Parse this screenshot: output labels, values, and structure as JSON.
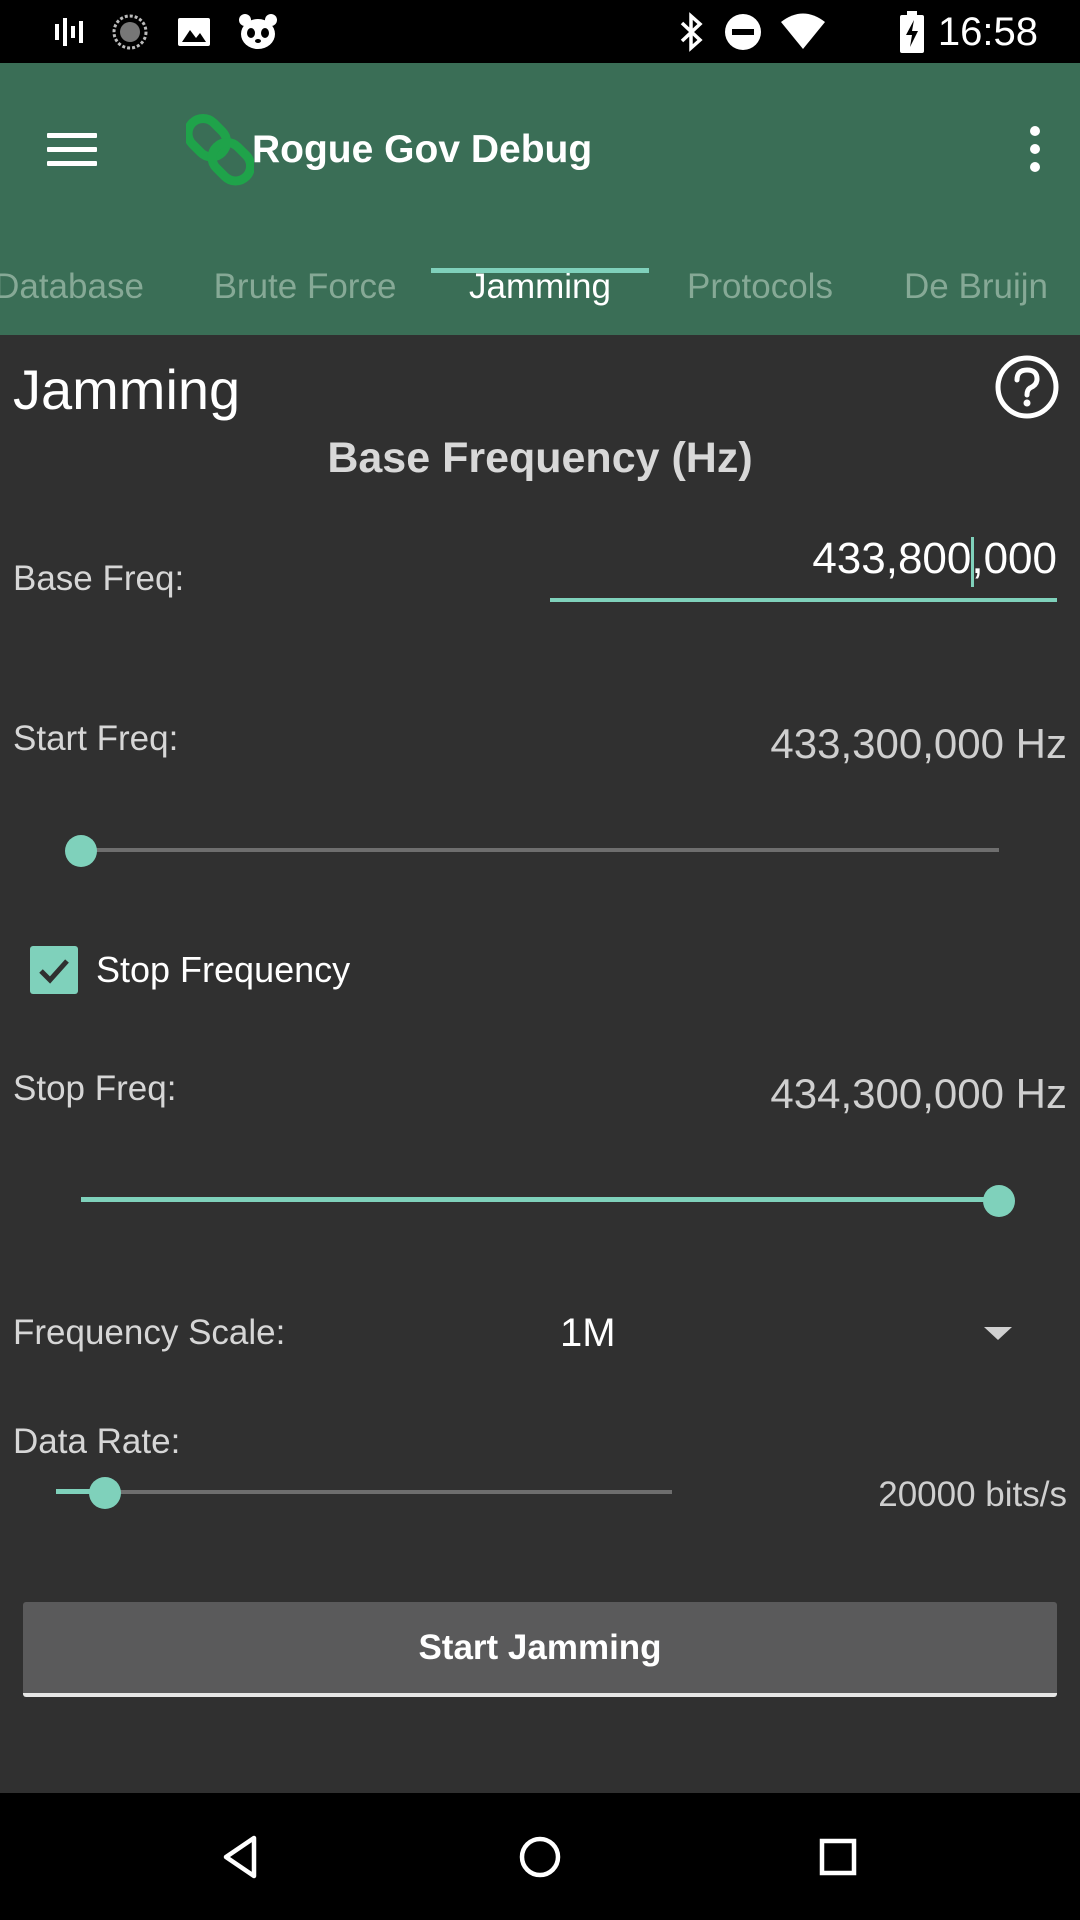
{
  "status_bar": {
    "time": "16:58",
    "left_icons": [
      "signal-bars-icon",
      "sync-circle-icon",
      "image-icon",
      "panda-icon"
    ],
    "right_icons": [
      "bluetooth-icon",
      "do-not-disturb-icon",
      "wifi-icon",
      "battery-charging-icon"
    ]
  },
  "app_bar": {
    "title": "Rogue Gov Debug",
    "logo_icon": "chain-link-icon",
    "accent_color": "#3a6e56",
    "tabs": [
      {
        "label": "Database",
        "active": false
      },
      {
        "label": "Brute Force",
        "active": false
      },
      {
        "label": "Jamming",
        "active": true
      },
      {
        "label": "Protocols",
        "active": false
      },
      {
        "label": "De Bruijn",
        "active": false
      }
    ]
  },
  "content": {
    "heading": "Jamming",
    "subheading": "Base Frequency (Hz)",
    "base_freq": {
      "label": "Base Freq:",
      "value": "433,800,000"
    },
    "start_freq": {
      "label": "Start Freq:",
      "value": "433,300,000 Hz",
      "slider_fraction": 0.0
    },
    "stop_frequency_checkbox": {
      "label": "Stop Frequency",
      "checked": true
    },
    "stop_freq": {
      "label": "Stop Freq:",
      "value": "434,300,000 Hz",
      "slider_fraction": 1.0
    },
    "frequency_scale": {
      "label": "Frequency Scale:",
      "selected": "1M"
    },
    "data_rate": {
      "label": "Data Rate:",
      "value": "20000 bits/s",
      "slider_fraction": 0.08
    },
    "start_button": "Start Jamming",
    "accent_color": "#7fd1bb"
  },
  "nav_bar": {
    "buttons": [
      "back-icon",
      "home-icon",
      "recents-icon"
    ]
  }
}
